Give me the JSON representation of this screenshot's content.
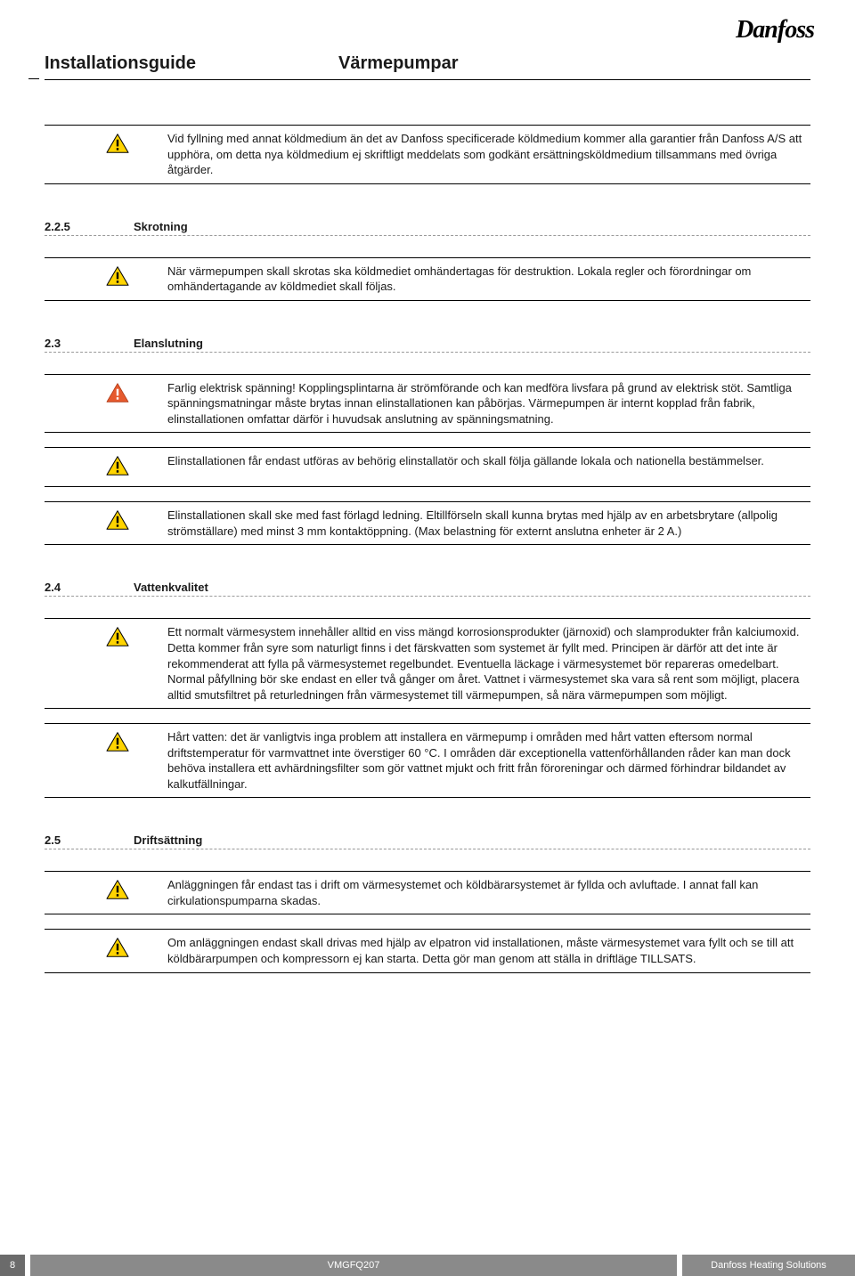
{
  "brand": "Danfoss",
  "header": {
    "left": "Installationsguide",
    "right": "Värmepumpar"
  },
  "colors": {
    "caution_fill": "#ffd400",
    "caution_stroke": "#000000",
    "danger_fill": "#e65a2e",
    "danger_stroke": "#ffffff",
    "text": "#1a1a1a",
    "dash": "#9a9a9a",
    "footer_dark": "#6b6b6b",
    "footer_light": "#8a8a8a"
  },
  "intro_note": {
    "icon": "caution",
    "text": "Vid fyllning med annat köldmedium än det av Danfoss specificerade köldmedium kommer alla garantier från Danfoss A/S att upphöra, om detta nya köldmedium ej skriftligt meddelats som godkänt ersättningsköldmedium tillsammans med övriga åtgärder."
  },
  "sections": [
    {
      "num": "2.2.5",
      "title": "Skrotning",
      "notes": [
        {
          "icon": "caution",
          "text": "När värmepumpen skall skrotas ska köldmediet omhändertagas för destruktion. Lokala regler och förordningar om omhändertagande av köldmediet skall följas."
        }
      ]
    },
    {
      "num": "2.3",
      "title": "Elanslutning",
      "notes": [
        {
          "icon": "danger",
          "text": "Farlig elektrisk spänning! Kopplingsplintarna är strömförande och kan medföra livsfara på grund av elektrisk stöt. Samtliga spänningsmatningar måste brytas innan elinstallationen kan påbörjas. Värmepumpen är internt kopplad från fabrik, elinstallationen omfattar därför i huvudsak anslutning av spänningsmatning."
        },
        {
          "icon": "caution",
          "text": "Elinstallationen får endast utföras av behörig elinstallatör och skall följa gällande lokala och nationella bestämmelser."
        },
        {
          "icon": "caution",
          "text": "Elinstallationen skall ske med fast förlagd ledning. Eltillförseln skall kunna brytas med hjälp av en arbetsbrytare (allpolig strömställare) med minst 3 mm kontaktöppning. (Max belastning för externt anslutna enheter är 2 A.)"
        }
      ]
    },
    {
      "num": "2.4",
      "title": "Vattenkvalitet",
      "notes": [
        {
          "icon": "caution",
          "text": "Ett normalt värmesystem innehåller alltid en viss mängd korrosionsprodukter (järnoxid) och slamprodukter från kalciumoxid. Detta kommer från syre som naturligt finns i det färskvatten som systemet är fyllt med. Principen är därför att det inte är rekommenderat att fylla på värmesystemet regelbundet. Eventuella läckage i värmesystemet bör repareras omedelbart. Normal påfyllning bör ske endast en eller två gånger om året. Vattnet i värmesystemet ska vara så rent som möjligt, placera alltid smutsfiltret på returledningen från värmesystemet till värmepumpen, så nära värmepumpen som möjligt."
        },
        {
          "icon": "caution",
          "text": "Hårt vatten: det är vanligtvis inga problem att installera en värmepump i områden med hårt vatten eftersom normal driftstemperatur för varmvattnet inte överstiger 60 °C. I områden där exceptionella vattenförhållanden råder kan man dock behöva installera ett avhärdningsfilter som gör vattnet mjukt och fritt från föroreningar och därmed förhindrar bildandet av kalkutfällningar."
        }
      ]
    },
    {
      "num": "2.5",
      "title": "Driftsättning",
      "notes": [
        {
          "icon": "caution",
          "text": "Anläggningen får endast tas i drift om värmesystemet och köldbärarsystemet är fyllda och avluftade. I annat fall kan cirkulationspumparna skadas."
        },
        {
          "icon": "caution",
          "text": "Om anläggningen endast skall drivas med hjälp av elpatron vid installationen, måste värmesystemet vara fyllt och se till att köldbärarpumpen och kompressorn ej kan starta. Detta gör man genom att ställa in driftläge TILLSATS."
        }
      ]
    }
  ],
  "footer": {
    "page": "8",
    "code": "VMGFQ207",
    "right": "Danfoss Heating Solutions"
  }
}
